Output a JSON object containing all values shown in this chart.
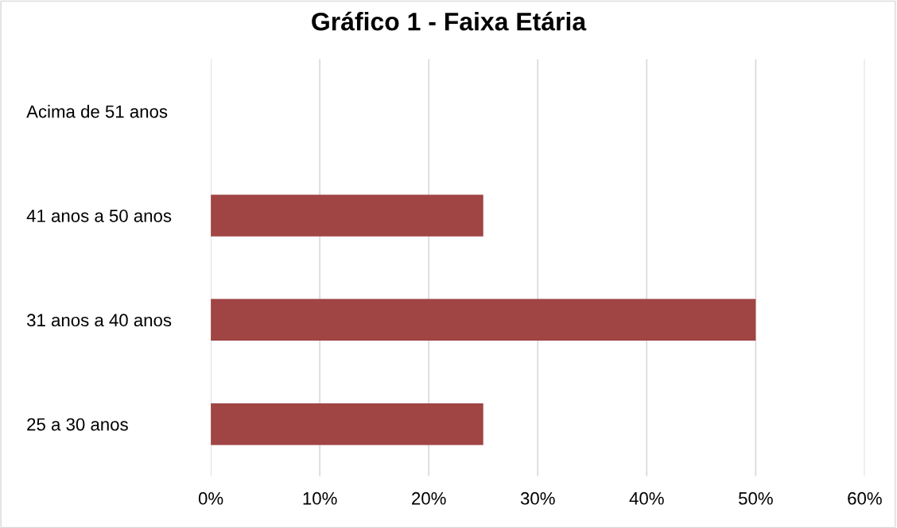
{
  "chart_data": {
    "type": "bar",
    "orientation": "horizontal",
    "title": "Gráfico 1 - Faixa Etária",
    "categories": [
      "Acima de 51 anos",
      "41 anos a 50 anos",
      "31 anos a 40 anos",
      "25 a 30 anos"
    ],
    "values": [
      0,
      25,
      50,
      25
    ],
    "color": "#a04444",
    "xlim": [
      0,
      60
    ],
    "xticks": [
      {
        "value": 0,
        "label": "0%"
      },
      {
        "value": 10,
        "label": "10%"
      },
      {
        "value": 20,
        "label": "20%"
      },
      {
        "value": 30,
        "label": "30%"
      },
      {
        "value": 40,
        "label": "40%"
      },
      {
        "value": 50,
        "label": "50%"
      },
      {
        "value": 60,
        "label": "60%"
      }
    ],
    "grid": "x"
  }
}
